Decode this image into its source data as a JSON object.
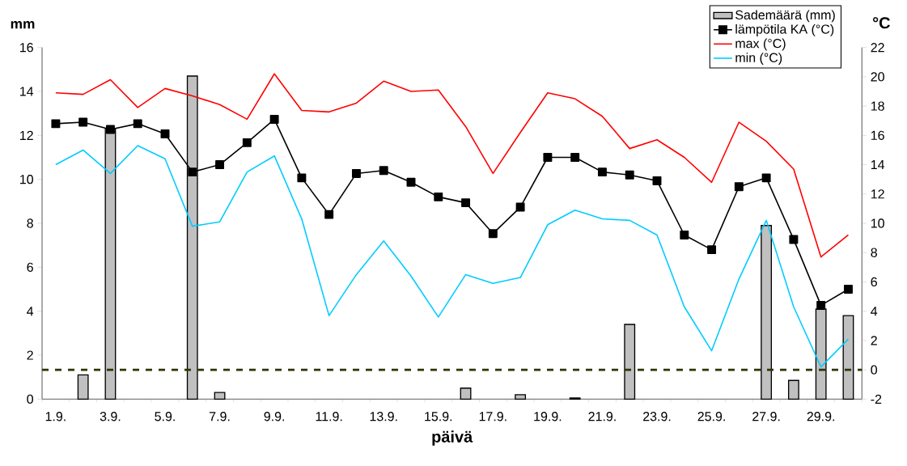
{
  "chart_data": {
    "type": "bar",
    "xlabel": "päivä",
    "ylabel": "mm",
    "y2label": "°C",
    "categories": [
      "1.9.",
      null,
      "3.9.",
      null,
      "5.9.",
      null,
      "7.9.",
      null,
      "9.9.",
      null,
      "11.9.",
      null,
      "13.9.",
      null,
      "15.9.",
      null,
      "17.9.",
      null,
      "19.9.",
      null,
      "21.9.",
      null,
      "23.9.",
      null,
      "25.9.",
      null,
      "27.9.",
      null,
      "29.9.",
      null
    ],
    "series": [
      {
        "name": "Sademäärä (mm)",
        "color": "#c0c0c0",
        "values": [
          null,
          1.1,
          12.3,
          null,
          null,
          14.7,
          0.3,
          null,
          null,
          null,
          null,
          null,
          null,
          null,
          null,
          0.5,
          null,
          0.2,
          null,
          0.05,
          null,
          3.4,
          null,
          null,
          null,
          null,
          7.9,
          0.85,
          4.1,
          3.8
        ]
      },
      {
        "name": "lämpötila KA (°C)",
        "type": "line",
        "axis": "y2",
        "color": "#000000",
        "marker": "square",
        "values": [
          16.8,
          16.9,
          16.4,
          16.8,
          16.1,
          13.5,
          14.0,
          15.5,
          17.1,
          13.1,
          10.6,
          13.4,
          13.6,
          12.8,
          11.8,
          11.4,
          9.3,
          11.1,
          14.5,
          14.5,
          13.5,
          13.3,
          12.9,
          9.2,
          8.2,
          12.5,
          13.1,
          8.9,
          4.4,
          5.5
        ]
      },
      {
        "name": "max (°C)",
        "type": "line",
        "axis": "y2",
        "color": "#ff0000",
        "values": [
          18.9,
          18.8,
          19.8,
          17.9,
          19.2,
          18.7,
          18.1,
          17.1,
          20.2,
          17.7,
          17.6,
          18.2,
          19.7,
          19.0,
          19.1,
          16.6,
          13.4,
          16.2,
          18.9,
          18.5,
          17.3,
          15.1,
          15.7,
          14.5,
          12.8,
          16.9,
          15.6,
          13.7,
          7.7,
          9.2
        ]
      },
      {
        "name": "min (°C)",
        "type": "line",
        "axis": "y2",
        "color": "#00ccff",
        "values": [
          14.0,
          15.0,
          13.4,
          15.3,
          14.4,
          9.8,
          10.1,
          13.5,
          14.6,
          10.3,
          3.7,
          6.5,
          8.8,
          6.4,
          3.6,
          6.5,
          5.9,
          6.3,
          9.9,
          10.9,
          10.3,
          10.2,
          9.2,
          4.3,
          1.3,
          6.2,
          10.2,
          4.3,
          0.2,
          2.1
        ]
      }
    ],
    "ylim": [
      0,
      16
    ],
    "yticks": [
      0,
      2,
      4,
      6,
      8,
      10,
      12,
      14,
      16
    ],
    "y2lim": [
      -2,
      22
    ],
    "y2ticks": [
      -2,
      0,
      2,
      4,
      6,
      8,
      10,
      12,
      14,
      16,
      18,
      20,
      22
    ],
    "ref_lines": [
      {
        "axis": "y2",
        "value": 0,
        "color": "#333300",
        "line_style": "dashed"
      }
    ],
    "legend": "top right",
    "grid": false
  }
}
